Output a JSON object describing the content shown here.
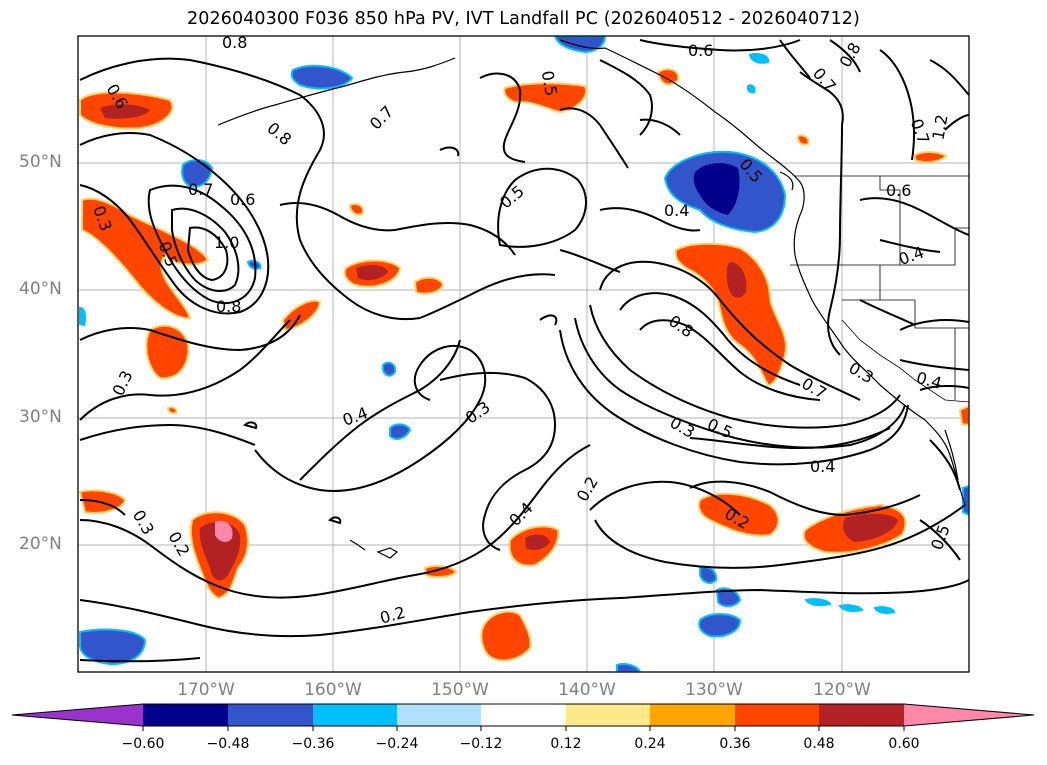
{
  "title": "2026040300 F036 850 hPa PV, IVT Landfall PC (2026040512 - 2026040712)",
  "map": {
    "projection": "lat-lon",
    "lon_range_deg": [
      -180,
      -110
    ],
    "lat_range_deg": [
      10,
      60
    ],
    "lat_labels": [
      "50°N",
      "40°N",
      "30°N",
      "20°N"
    ],
    "lon_labels": [
      "170°W",
      "160°W",
      "150°W",
      "140°W",
      "130°W",
      "120°W"
    ]
  },
  "contour_labels": [
    "0.8",
    "0.6",
    "0.6",
    "0.5",
    "0.7",
    "0.8",
    "0.7",
    "0.8",
    "0.7",
    "0.6",
    "1.0",
    "0.8",
    "0.3",
    "0.5",
    "0.5",
    "0.4",
    "0.5",
    "0.7",
    "0.6",
    "0.8",
    "0.7",
    "1.2",
    "0.4",
    "0.4",
    "0.3",
    "0.3",
    "0.4",
    "0.3",
    "0.3",
    "0.5",
    "0.4",
    "0.2",
    "0.4",
    "0.3",
    "0.2",
    "0.2",
    "0.2",
    "0.5"
  ],
  "colorbar": {
    "ticks": [
      "−0.60",
      "−0.48",
      "−0.36",
      "−0.24",
      "−0.12",
      "0.12",
      "0.24",
      "0.36",
      "0.48",
      "0.60"
    ],
    "colors": [
      "#9933cc",
      "#00008b",
      "#3355cc",
      "#00bfff",
      "#b0e2ff",
      "#ffffff",
      "#ffe88a",
      "#ffa500",
      "#ff4500",
      "#b22222",
      "#ff88aa",
      "#ff88aa"
    ],
    "extend": "both"
  }
}
